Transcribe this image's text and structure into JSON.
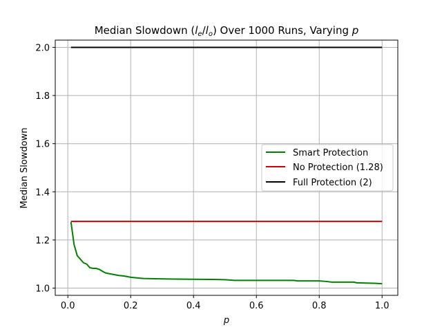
{
  "chart_data": {
    "type": "line",
    "title": {
      "prefix": "Median Slowdown (",
      "ratio_num": "l",
      "ratio_num_sub": "e",
      "ratio_sep": "/",
      "ratio_den": "l",
      "ratio_den_sub": "o",
      "suffix": ") Over 1000 Runs, Varying ",
      "var": "p"
    },
    "xlabel": "p",
    "ylabel": "Median Slowdown",
    "xlim": [
      -0.04,
      1.05
    ],
    "ylim": [
      0.97,
      2.03
    ],
    "xticks": [
      0.0,
      0.2,
      0.4,
      0.6,
      0.8,
      1.0
    ],
    "xtick_labels": [
      "0.0",
      "0.2",
      "0.4",
      "0.6",
      "0.8",
      "1.0"
    ],
    "yticks": [
      1.0,
      1.2,
      1.4,
      1.6,
      1.8,
      2.0
    ],
    "ytick_labels": [
      "1.0",
      "1.2",
      "1.4",
      "1.6",
      "1.8",
      "2.0"
    ],
    "grid": true,
    "legend_position": "center-right",
    "series": [
      {
        "name": "Smart Protection",
        "color": "#008000",
        "x": [
          0.01,
          0.02,
          0.03,
          0.04,
          0.05,
          0.06,
          0.07,
          0.08,
          0.09,
          0.1,
          0.11,
          0.12,
          0.14,
          0.16,
          0.18,
          0.2,
          0.24,
          0.32,
          0.46,
          0.5,
          0.53,
          0.72,
          0.73,
          0.8,
          0.82,
          0.84,
          0.91,
          0.92,
          0.98,
          1.0
        ],
        "y": [
          1.275,
          1.18,
          1.135,
          1.12,
          1.105,
          1.1,
          1.085,
          1.082,
          1.082,
          1.078,
          1.07,
          1.063,
          1.058,
          1.053,
          1.05,
          1.045,
          1.04,
          1.038,
          1.036,
          1.035,
          1.032,
          1.032,
          1.03,
          1.03,
          1.028,
          1.025,
          1.025,
          1.022,
          1.02,
          1.018
        ]
      },
      {
        "name": "No Protection (1.28)",
        "color": "#d00000",
        "x": [
          0.01,
          1.0
        ],
        "y": [
          1.277,
          1.277
        ]
      },
      {
        "name": "Full Protection (2)",
        "color": "#000000",
        "x": [
          0.01,
          1.0
        ],
        "y": [
          2.0,
          2.0
        ]
      }
    ]
  }
}
